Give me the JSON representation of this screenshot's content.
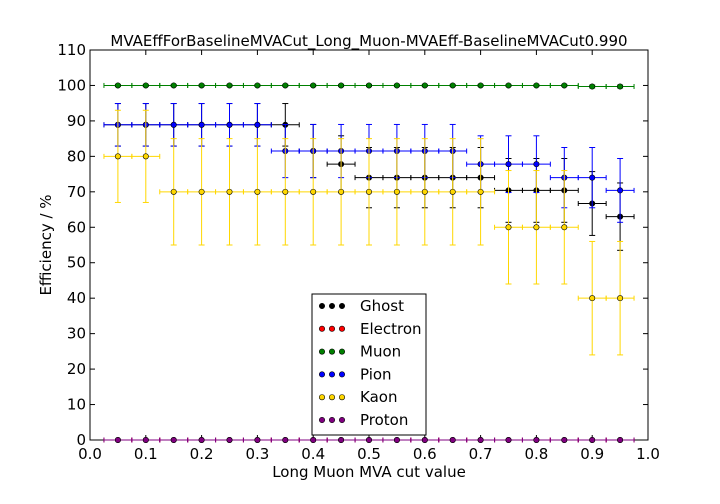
{
  "chart_data": {
    "type": "scatter",
    "title": "MVAEffForBaselineMVACut_Long_Muon-MVAEff-BaselineMVACut0.990",
    "xlabel": "Long Muon MVA cut value",
    "ylabel": "Efficiency / %",
    "xlim": [
      0.0,
      1.0
    ],
    "ylim": [
      0,
      110
    ],
    "xticks": [
      "0.0",
      "0.1",
      "0.2",
      "0.3",
      "0.4",
      "0.5",
      "0.6",
      "0.7",
      "0.8",
      "0.9",
      "1.0"
    ],
    "yticks": [
      "0",
      "10",
      "20",
      "30",
      "40",
      "50",
      "60",
      "70",
      "80",
      "90",
      "100",
      "110"
    ],
    "grid": false,
    "legend_position": "lower-center",
    "series": [
      {
        "name": "Ghost",
        "color": "#000000",
        "points": [
          {
            "x": 0.05,
            "y": 88.9,
            "xerr": 0.025,
            "yerr": 6.0
          },
          {
            "x": 0.1,
            "y": 88.9,
            "xerr": 0.025,
            "yerr": 6.0
          },
          {
            "x": 0.15,
            "y": 88.9,
            "xerr": 0.025,
            "yerr": 6.0
          },
          {
            "x": 0.2,
            "y": 88.9,
            "xerr": 0.025,
            "yerr": 6.0
          },
          {
            "x": 0.25,
            "y": 88.9,
            "xerr": 0.025,
            "yerr": 6.0
          },
          {
            "x": 0.3,
            "y": 88.9,
            "xerr": 0.025,
            "yerr": 6.0
          },
          {
            "x": 0.35,
            "y": 88.9,
            "xerr": 0.025,
            "yerr": 6.0
          },
          {
            "x": 0.4,
            "y": 81.5,
            "xerr": 0.025,
            "yerr": 7.5
          },
          {
            "x": 0.45,
            "y": 77.8,
            "xerr": 0.025,
            "yerr": 8.0
          },
          {
            "x": 0.5,
            "y": 74.0,
            "xerr": 0.025,
            "yerr": 8.5
          },
          {
            "x": 0.55,
            "y": 74.0,
            "xerr": 0.025,
            "yerr": 8.5
          },
          {
            "x": 0.6,
            "y": 74.0,
            "xerr": 0.025,
            "yerr": 8.5
          },
          {
            "x": 0.65,
            "y": 74.0,
            "xerr": 0.025,
            "yerr": 8.5
          },
          {
            "x": 0.7,
            "y": 74.0,
            "xerr": 0.025,
            "yerr": 8.5
          },
          {
            "x": 0.75,
            "y": 70.4,
            "xerr": 0.025,
            "yerr": 9.0
          },
          {
            "x": 0.8,
            "y": 70.4,
            "xerr": 0.025,
            "yerr": 9.0
          },
          {
            "x": 0.85,
            "y": 70.4,
            "xerr": 0.025,
            "yerr": 9.0
          },
          {
            "x": 0.9,
            "y": 66.7,
            "xerr": 0.025,
            "yerr": 9.0
          },
          {
            "x": 0.95,
            "y": 63.0,
            "xerr": 0.025,
            "yerr": 9.5
          }
        ]
      },
      {
        "name": "Electron",
        "color": "#ff0000",
        "points": [
          {
            "x": 0.05,
            "y": 0,
            "xerr": 0.025,
            "yerr": 0
          },
          {
            "x": 0.1,
            "y": 0,
            "xerr": 0.025,
            "yerr": 0
          },
          {
            "x": 0.15,
            "y": 0,
            "xerr": 0.025,
            "yerr": 0
          },
          {
            "x": 0.2,
            "y": 0,
            "xerr": 0.025,
            "yerr": 0
          },
          {
            "x": 0.25,
            "y": 0,
            "xerr": 0.025,
            "yerr": 0
          },
          {
            "x": 0.3,
            "y": 0,
            "xerr": 0.025,
            "yerr": 0
          },
          {
            "x": 0.35,
            "y": 0,
            "xerr": 0.025,
            "yerr": 0
          },
          {
            "x": 0.4,
            "y": 0,
            "xerr": 0.025,
            "yerr": 0
          },
          {
            "x": 0.45,
            "y": 0,
            "xerr": 0.025,
            "yerr": 0
          },
          {
            "x": 0.5,
            "y": 0,
            "xerr": 0.025,
            "yerr": 0
          },
          {
            "x": 0.55,
            "y": 0,
            "xerr": 0.025,
            "yerr": 0
          },
          {
            "x": 0.6,
            "y": 0,
            "xerr": 0.025,
            "yerr": 0
          },
          {
            "x": 0.65,
            "y": 0,
            "xerr": 0.025,
            "yerr": 0
          },
          {
            "x": 0.7,
            "y": 0,
            "xerr": 0.025,
            "yerr": 0
          },
          {
            "x": 0.75,
            "y": 0,
            "xerr": 0.025,
            "yerr": 0
          },
          {
            "x": 0.8,
            "y": 0,
            "xerr": 0.025,
            "yerr": 0
          },
          {
            "x": 0.85,
            "y": 0,
            "xerr": 0.025,
            "yerr": 0
          },
          {
            "x": 0.9,
            "y": 0,
            "xerr": 0.025,
            "yerr": 0
          },
          {
            "x": 0.95,
            "y": 0,
            "xerr": 0.025,
            "yerr": 0
          }
        ]
      },
      {
        "name": "Muon",
        "color": "#008000",
        "points": [
          {
            "x": 0.05,
            "y": 100.0,
            "xerr": 0.025,
            "yerr": 0.3
          },
          {
            "x": 0.1,
            "y": 100.0,
            "xerr": 0.025,
            "yerr": 0.3
          },
          {
            "x": 0.15,
            "y": 100.0,
            "xerr": 0.025,
            "yerr": 0.3
          },
          {
            "x": 0.2,
            "y": 100.0,
            "xerr": 0.025,
            "yerr": 0.3
          },
          {
            "x": 0.25,
            "y": 100.0,
            "xerr": 0.025,
            "yerr": 0.3
          },
          {
            "x": 0.3,
            "y": 100.0,
            "xerr": 0.025,
            "yerr": 0.3
          },
          {
            "x": 0.35,
            "y": 100.0,
            "xerr": 0.025,
            "yerr": 0.3
          },
          {
            "x": 0.4,
            "y": 100.0,
            "xerr": 0.025,
            "yerr": 0.3
          },
          {
            "x": 0.45,
            "y": 100.0,
            "xerr": 0.025,
            "yerr": 0.3
          },
          {
            "x": 0.5,
            "y": 100.0,
            "xerr": 0.025,
            "yerr": 0.3
          },
          {
            "x": 0.55,
            "y": 100.0,
            "xerr": 0.025,
            "yerr": 0.3
          },
          {
            "x": 0.6,
            "y": 100.0,
            "xerr": 0.025,
            "yerr": 0.3
          },
          {
            "x": 0.65,
            "y": 100.0,
            "xerr": 0.025,
            "yerr": 0.3
          },
          {
            "x": 0.7,
            "y": 100.0,
            "xerr": 0.025,
            "yerr": 0.3
          },
          {
            "x": 0.75,
            "y": 100.0,
            "xerr": 0.025,
            "yerr": 0.3
          },
          {
            "x": 0.8,
            "y": 100.0,
            "xerr": 0.025,
            "yerr": 0.3
          },
          {
            "x": 0.85,
            "y": 100.0,
            "xerr": 0.025,
            "yerr": 0.3
          },
          {
            "x": 0.9,
            "y": 99.7,
            "xerr": 0.025,
            "yerr": 0.4
          },
          {
            "x": 0.95,
            "y": 99.7,
            "xerr": 0.025,
            "yerr": 0.4
          }
        ]
      },
      {
        "name": "Pion",
        "color": "#0000ff",
        "points": [
          {
            "x": 0.05,
            "y": 88.9,
            "xerr": 0.025,
            "yerr": 6.0
          },
          {
            "x": 0.1,
            "y": 88.9,
            "xerr": 0.025,
            "yerr": 6.0
          },
          {
            "x": 0.15,
            "y": 88.9,
            "xerr": 0.025,
            "yerr": 6.0
          },
          {
            "x": 0.2,
            "y": 88.9,
            "xerr": 0.025,
            "yerr": 6.0
          },
          {
            "x": 0.25,
            "y": 88.9,
            "xerr": 0.025,
            "yerr": 6.0
          },
          {
            "x": 0.3,
            "y": 88.9,
            "xerr": 0.025,
            "yerr": 6.0
          },
          {
            "x": 0.35,
            "y": 81.5,
            "xerr": 0.025,
            "yerr": 7.5
          },
          {
            "x": 0.4,
            "y": 81.5,
            "xerr": 0.025,
            "yerr": 7.5
          },
          {
            "x": 0.45,
            "y": 81.5,
            "xerr": 0.025,
            "yerr": 7.5
          },
          {
            "x": 0.5,
            "y": 81.5,
            "xerr": 0.025,
            "yerr": 7.5
          },
          {
            "x": 0.55,
            "y": 81.5,
            "xerr": 0.025,
            "yerr": 7.5
          },
          {
            "x": 0.6,
            "y": 81.5,
            "xerr": 0.025,
            "yerr": 7.5
          },
          {
            "x": 0.65,
            "y": 81.5,
            "xerr": 0.025,
            "yerr": 7.5
          },
          {
            "x": 0.7,
            "y": 77.8,
            "xerr": 0.025,
            "yerr": 8.0
          },
          {
            "x": 0.75,
            "y": 77.8,
            "xerr": 0.025,
            "yerr": 8.0
          },
          {
            "x": 0.8,
            "y": 77.8,
            "xerr": 0.025,
            "yerr": 8.0
          },
          {
            "x": 0.85,
            "y": 74.0,
            "xerr": 0.025,
            "yerr": 8.5
          },
          {
            "x": 0.9,
            "y": 74.0,
            "xerr": 0.025,
            "yerr": 8.5
          },
          {
            "x": 0.95,
            "y": 70.4,
            "xerr": 0.025,
            "yerr": 9.0
          }
        ]
      },
      {
        "name": "Kaon",
        "color": "#ffd700",
        "points": [
          {
            "x": 0.05,
            "y": 80.0,
            "xerr": 0.025,
            "yerr": 13.0
          },
          {
            "x": 0.1,
            "y": 80.0,
            "xerr": 0.025,
            "yerr": 13.0
          },
          {
            "x": 0.15,
            "y": 70.0,
            "xerr": 0.025,
            "yerr": 15.0
          },
          {
            "x": 0.2,
            "y": 70.0,
            "xerr": 0.025,
            "yerr": 15.0
          },
          {
            "x": 0.25,
            "y": 70.0,
            "xerr": 0.025,
            "yerr": 15.0
          },
          {
            "x": 0.3,
            "y": 70.0,
            "xerr": 0.025,
            "yerr": 15.0
          },
          {
            "x": 0.35,
            "y": 70.0,
            "xerr": 0.025,
            "yerr": 15.0
          },
          {
            "x": 0.4,
            "y": 70.0,
            "xerr": 0.025,
            "yerr": 15.0
          },
          {
            "x": 0.45,
            "y": 70.0,
            "xerr": 0.025,
            "yerr": 15.0
          },
          {
            "x": 0.5,
            "y": 70.0,
            "xerr": 0.025,
            "yerr": 15.0
          },
          {
            "x": 0.55,
            "y": 70.0,
            "xerr": 0.025,
            "yerr": 15.0
          },
          {
            "x": 0.6,
            "y": 70.0,
            "xerr": 0.025,
            "yerr": 15.0
          },
          {
            "x": 0.65,
            "y": 70.0,
            "xerr": 0.025,
            "yerr": 15.0
          },
          {
            "x": 0.7,
            "y": 70.0,
            "xerr": 0.025,
            "yerr": 15.0
          },
          {
            "x": 0.75,
            "y": 60.0,
            "xerr": 0.025,
            "yerr": 16.0
          },
          {
            "x": 0.8,
            "y": 60.0,
            "xerr": 0.025,
            "yerr": 16.0
          },
          {
            "x": 0.85,
            "y": 60.0,
            "xerr": 0.025,
            "yerr": 16.0
          },
          {
            "x": 0.9,
            "y": 40.0,
            "xerr": 0.025,
            "yerr": 16.0
          },
          {
            "x": 0.95,
            "y": 40.0,
            "xerr": 0.025,
            "yerr": 16.0
          }
        ]
      },
      {
        "name": "Proton",
        "color": "#800080",
        "points": [
          {
            "x": 0.05,
            "y": 0,
            "xerr": 0.025,
            "yerr": 0
          },
          {
            "x": 0.1,
            "y": 0,
            "xerr": 0.025,
            "yerr": 0
          },
          {
            "x": 0.15,
            "y": 0,
            "xerr": 0.025,
            "yerr": 0
          },
          {
            "x": 0.2,
            "y": 0,
            "xerr": 0.025,
            "yerr": 0
          },
          {
            "x": 0.25,
            "y": 0,
            "xerr": 0.025,
            "yerr": 0
          },
          {
            "x": 0.3,
            "y": 0,
            "xerr": 0.025,
            "yerr": 0
          },
          {
            "x": 0.35,
            "y": 0,
            "xerr": 0.025,
            "yerr": 0
          },
          {
            "x": 0.4,
            "y": 0,
            "xerr": 0.025,
            "yerr": 0
          },
          {
            "x": 0.45,
            "y": 0,
            "xerr": 0.025,
            "yerr": 0
          },
          {
            "x": 0.5,
            "y": 0,
            "xerr": 0.025,
            "yerr": 0
          },
          {
            "x": 0.55,
            "y": 0,
            "xerr": 0.025,
            "yerr": 0
          },
          {
            "x": 0.6,
            "y": 0,
            "xerr": 0.025,
            "yerr": 0
          },
          {
            "x": 0.65,
            "y": 0,
            "xerr": 0.025,
            "yerr": 0
          },
          {
            "x": 0.7,
            "y": 0,
            "xerr": 0.025,
            "yerr": 0
          },
          {
            "x": 0.75,
            "y": 0,
            "xerr": 0.025,
            "yerr": 0
          },
          {
            "x": 0.8,
            "y": 0,
            "xerr": 0.025,
            "yerr": 0
          },
          {
            "x": 0.85,
            "y": 0,
            "xerr": 0.025,
            "yerr": 0
          },
          {
            "x": 0.9,
            "y": 0,
            "xerr": 0.025,
            "yerr": 0
          },
          {
            "x": 0.95,
            "y": 0,
            "xerr": 0.025,
            "yerr": 0
          }
        ]
      }
    ]
  }
}
